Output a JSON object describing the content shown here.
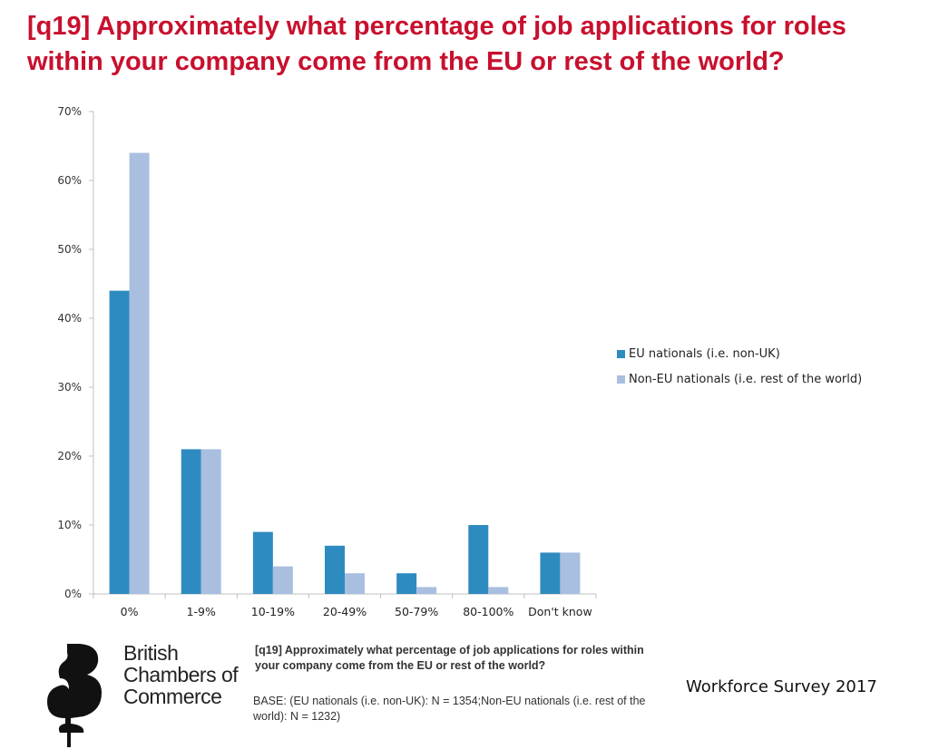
{
  "title": "[q19] Approximately what percentage of job applications for roles within your company come from the EU or rest of the world?",
  "footer": {
    "question": "[q19] Approximately what percentage of job applications for roles within your company come from the EU or rest of the world?",
    "base": "BASE: (EU nationals (i.e. non-UK): N = 1354;Non-EU nationals (i.e. rest of the world): N = 1232)",
    "survey": "Workforce Survey 2017",
    "logo_lines": [
      "British",
      "Chambers of",
      "Commerce"
    ]
  },
  "colors": {
    "title": "#c8102e",
    "eu": "#2e8bc0",
    "non_eu": "#a9bfdf",
    "axis": "#bfbfbf"
  },
  "chart_data": {
    "type": "bar",
    "categories": [
      "0%",
      "1-9%",
      "10-19%",
      "20-49%",
      "50-79%",
      "80-100%",
      "Don't know"
    ],
    "series": [
      {
        "name": "EU nationals (i.e. non-UK)",
        "values": [
          44,
          21,
          9,
          7,
          3,
          10,
          6
        ]
      },
      {
        "name": "Non-EU nationals (i.e. rest of the world)",
        "values": [
          64,
          21,
          4,
          3,
          1,
          1,
          6
        ]
      }
    ],
    "ylim": [
      0,
      70
    ],
    "yticks": [
      0,
      10,
      20,
      30,
      40,
      50,
      60,
      70
    ],
    "ytick_labels": [
      "0%",
      "10%",
      "20%",
      "30%",
      "40%",
      "50%",
      "60%",
      "70%"
    ],
    "legend_position": "right",
    "grid": false
  }
}
